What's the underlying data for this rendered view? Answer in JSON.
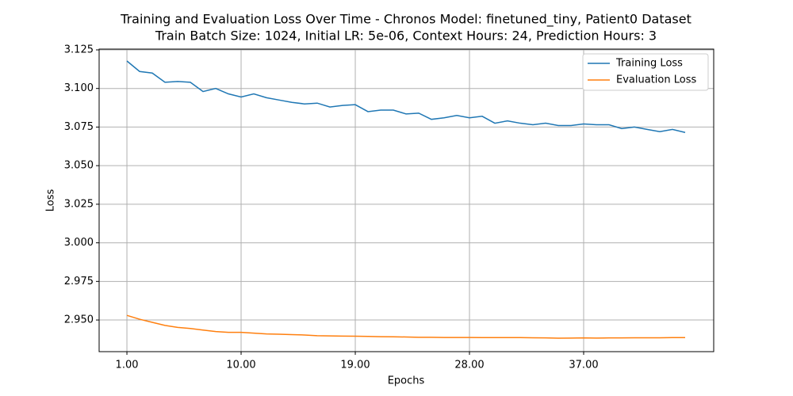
{
  "chart_data": {
    "type": "line",
    "title": "Training and Evaluation Loss Over Time - Chronos Model: finetuned_tiny, Patient0 Dataset",
    "subtitle": "Train Batch Size: 1024, Initial LR: 5e-06, Context Hours: 24, Prediction Hours: 3",
    "x_label": "Epochs",
    "y_label": "Loss",
    "x": [
      1,
      2,
      3,
      4,
      5,
      6,
      7,
      8,
      9,
      10,
      11,
      12,
      13,
      14,
      15,
      16,
      17,
      18,
      19,
      20,
      21,
      22,
      23,
      24,
      25,
      26,
      27,
      28,
      29,
      30,
      31,
      32,
      33,
      34,
      35,
      36,
      37,
      38,
      39,
      40,
      41,
      42,
      43,
      44,
      45
    ],
    "series": [
      {
        "name": "Training Loss",
        "color": "#1f77b4",
        "values": [
          3.1178,
          3.111,
          3.11,
          3.104,
          3.1045,
          3.104,
          3.098,
          3.1,
          3.0965,
          3.0945,
          3.0965,
          3.094,
          3.0925,
          3.091,
          3.09,
          3.0905,
          3.088,
          3.089,
          3.0895,
          3.085,
          3.086,
          3.086,
          3.0835,
          3.084,
          3.08,
          3.081,
          3.0825,
          3.081,
          3.082,
          3.0775,
          3.079,
          3.0775,
          3.0765,
          3.0775,
          3.076,
          3.076,
          3.077,
          3.0765,
          3.0765,
          3.074,
          3.075,
          3.0735,
          3.072,
          3.0735,
          3.0715
        ]
      },
      {
        "name": "Evaluation Loss",
        "color": "#ff7f0e",
        "values": [
          2.953,
          2.9505,
          2.9485,
          2.9465,
          2.9452,
          2.9445,
          2.9435,
          2.9425,
          2.942,
          2.942,
          2.9415,
          2.941,
          2.9408,
          2.9405,
          2.9403,
          2.9398,
          2.9397,
          2.9396,
          2.9395,
          2.9394,
          2.9392,
          2.9391,
          2.939,
          2.9388,
          2.9388,
          2.9387,
          2.9387,
          2.9387,
          2.9386,
          2.9386,
          2.9386,
          2.9386,
          2.9385,
          2.9384,
          2.9382,
          2.9383,
          2.9384,
          2.9383,
          2.9384,
          2.9384,
          2.9385,
          2.9385,
          2.9385,
          2.9386,
          2.9386
        ]
      }
    ],
    "xlim": [
      -1.19,
      47.25
    ],
    "ylim": [
      2.9295,
      3.1255
    ],
    "xticks": [
      {
        "value": 1,
        "label": "1.00"
      },
      {
        "value": 10,
        "label": "10.00"
      },
      {
        "value": 19,
        "label": "19.00"
      },
      {
        "value": 28,
        "label": "28.00"
      },
      {
        "value": 37,
        "label": "37.00"
      }
    ],
    "yticks": [
      {
        "value": 2.95,
        "label": "2.950"
      },
      {
        "value": 2.975,
        "label": "2.975"
      },
      {
        "value": 3.0,
        "label": "3.000"
      },
      {
        "value": 3.025,
        "label": "3.025"
      },
      {
        "value": 3.05,
        "label": "3.050"
      },
      {
        "value": 3.075,
        "label": "3.075"
      },
      {
        "value": 3.1,
        "label": "3.100"
      },
      {
        "value": 3.125,
        "label": "3.125"
      }
    ],
    "grid": true,
    "legend": "upper right"
  }
}
